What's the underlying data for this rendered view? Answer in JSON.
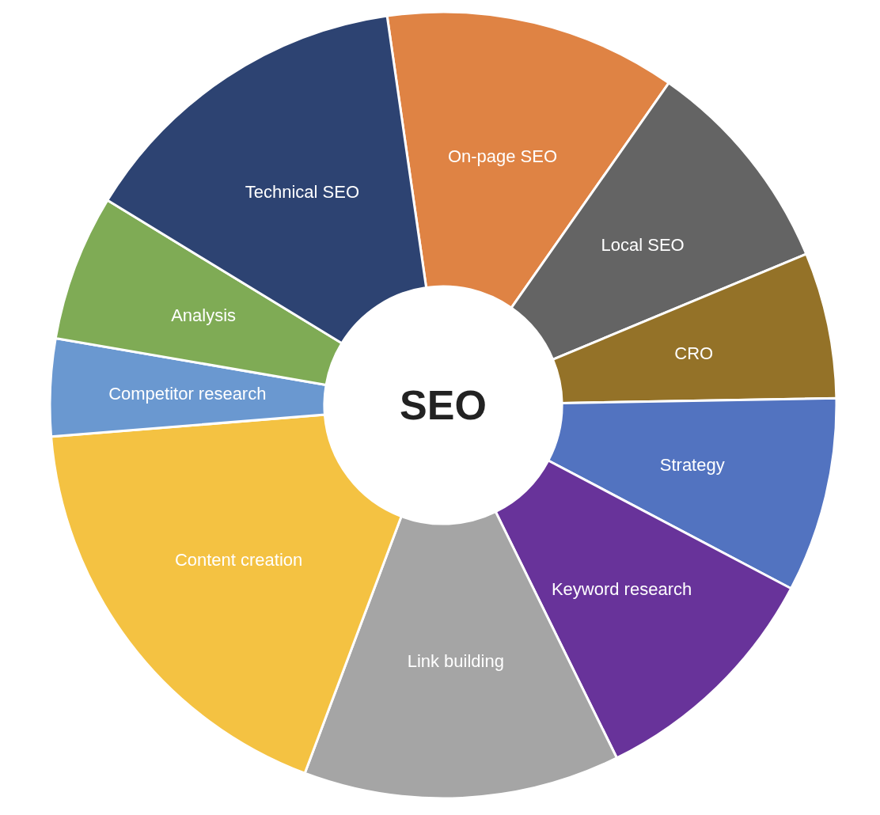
{
  "chart_data": {
    "type": "donut",
    "title": "SEO",
    "categories": [
      "On-page SEO",
      "Local SEO",
      "CRO",
      "Strategy",
      "Keyword research",
      "Link building",
      "Content creation",
      "Competitor research",
      "Analysis",
      "Technical SEO"
    ],
    "values": [
      12,
      9,
      6,
      8,
      10,
      13,
      18,
      4,
      6,
      14
    ],
    "colors": [
      "#df8344",
      "#646464",
      "#947228",
      "#5273c0",
      "#68339a",
      "#a5a5a5",
      "#f4c242",
      "#6a98d0",
      "#7fab55",
      "#2d4372"
    ]
  }
}
